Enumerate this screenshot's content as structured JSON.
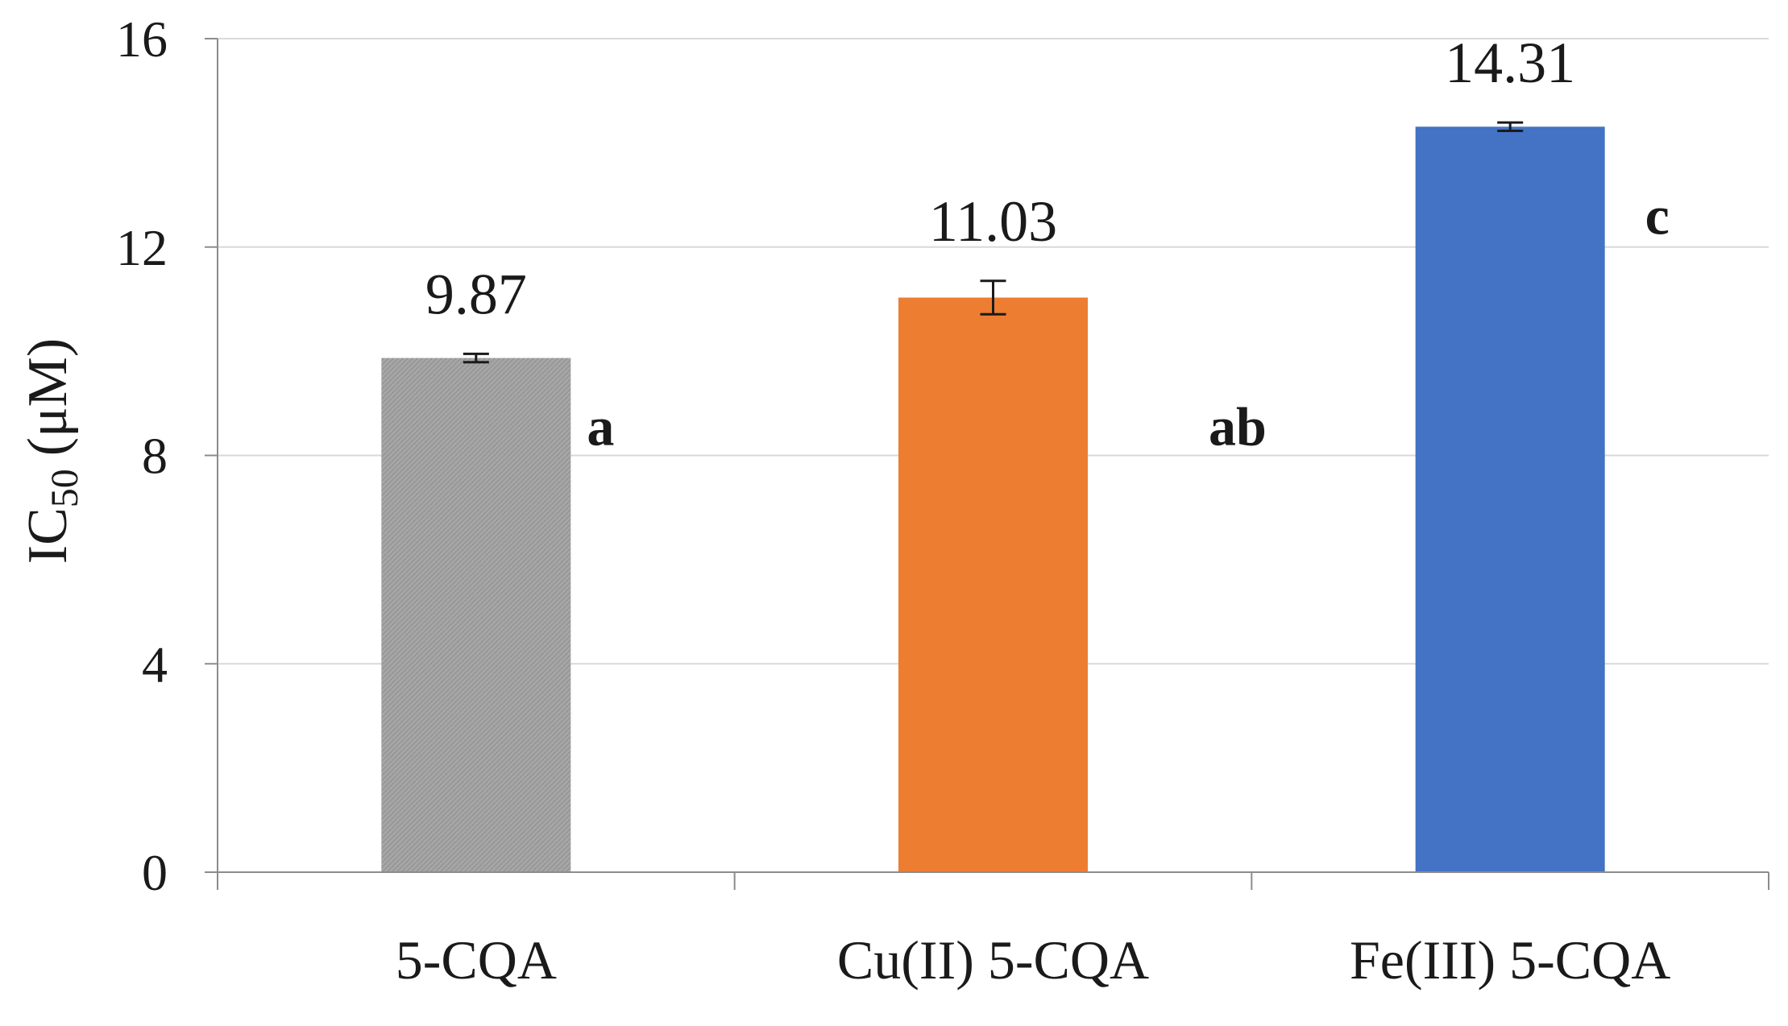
{
  "chart_data": {
    "type": "bar",
    "title": "",
    "xlabel": "",
    "ylabel": {
      "main": "IC",
      "subscript": "50",
      "unit": "(μM)"
    },
    "ylim": [
      0,
      16
    ],
    "yticks": [
      0,
      4,
      8,
      12,
      16
    ],
    "grid": true,
    "categories": [
      "5-CQA",
      "Cu(II) 5-CQA",
      "Fe(III) 5-CQA"
    ],
    "values": [
      9.87,
      11.03,
      14.31
    ],
    "value_labels": [
      "9.87",
      "11.03",
      "14.31"
    ],
    "errors": [
      0.08,
      0.32,
      0.08
    ],
    "significance": [
      "a",
      "ab",
      "c"
    ],
    "colors": [
      "#a6a6a6",
      "#ed7d31",
      "#4472c4"
    ],
    "grid_color": "#d9d9d9",
    "axis_color": "#8c8c8c"
  }
}
